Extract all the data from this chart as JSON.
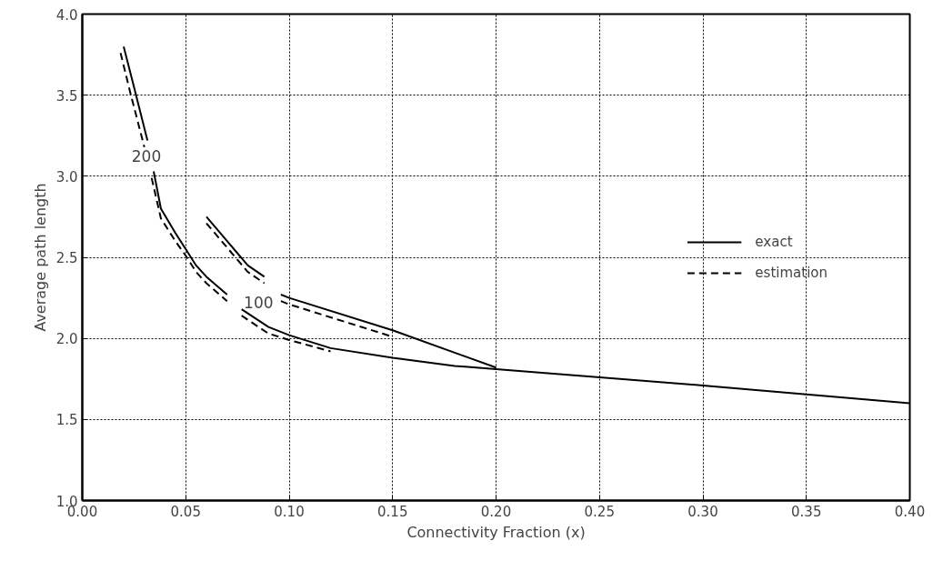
{
  "chart_data": {
    "type": "line",
    "xlabel": "Connectivity Fraction (x)",
    "ylabel": "Average path length",
    "xlim": [
      0,
      0.4
    ],
    "ylim": [
      1.0,
      4.0
    ],
    "xticks": [
      {
        "value": 0,
        "label": "0.00"
      },
      {
        "value": 0.05,
        "label": "0.05"
      },
      {
        "value": 0.1,
        "label": "0.10"
      },
      {
        "value": 0.15,
        "label": "0.15"
      },
      {
        "value": 0.2,
        "label": "0.20"
      },
      {
        "value": 0.25,
        "label": "0.25"
      },
      {
        "value": 0.3,
        "label": "0.30"
      },
      {
        "value": 0.35,
        "label": "0.35"
      },
      {
        "value": 0.4,
        "label": "0.40"
      }
    ],
    "yticks": [
      {
        "value": 1,
        "label": "1.0"
      },
      {
        "value": 1.5,
        "label": "1.5"
      },
      {
        "value": 2,
        "label": "2.0"
      },
      {
        "value": 2.5,
        "label": "2.5"
      },
      {
        "value": 3,
        "label": "3.0"
      },
      {
        "value": 3.5,
        "label": "3.5"
      },
      {
        "value": 4,
        "label": "4.0"
      }
    ],
    "grid": true,
    "legend": "right",
    "marker": "none",
    "series": [
      {
        "name": "exact",
        "color": "#000000",
        "line_style": "solid",
        "x": [
          0.02,
          0.025,
          0.0315,
          0.033,
          0.0345,
          0.038,
          0.045,
          0.05,
          0.055,
          0.06,
          0.07,
          0.074,
          0.077,
          0.09,
          0.1,
          0.12,
          0.15,
          0.18,
          0.2,
          0.3,
          0.4
        ],
        "values": [
          3.8,
          3.55,
          3.22,
          null,
          3.03,
          2.8,
          2.65,
          2.55,
          2.45,
          2.38,
          2.27,
          null,
          2.18,
          2.07,
          2.02,
          1.94,
          1.88,
          1.83,
          1.81,
          1.71,
          1.6
        ]
      },
      {
        "name": "estimation",
        "color": "#000000",
        "line_style": "dashed",
        "x": [
          0.0185,
          0.0235,
          0.03,
          0.033,
          0.0335,
          0.038,
          0.045,
          0.05,
          0.055,
          0.06,
          0.07,
          0.074,
          0.077,
          0.09,
          0.1,
          0.12
        ],
        "values": [
          3.76,
          3.5,
          3.18,
          null,
          2.99,
          2.74,
          2.6,
          2.51,
          2.41,
          2.34,
          2.23,
          null,
          2.14,
          2.03,
          1.99,
          1.92
        ]
      },
      {
        "color": "#000000",
        "line_style": "solid",
        "x": [
          0.06,
          0.07,
          0.08,
          0.088,
          0.092,
          0.096,
          0.1,
          0.15,
          0.2
        ],
        "values": [
          2.75,
          2.6,
          2.45,
          2.38,
          null,
          2.27,
          2.25,
          2.05,
          1.82
        ]
      },
      {
        "color": "#000000",
        "line_style": "dashed",
        "x": [
          0.06,
          0.07,
          0.08,
          0.088,
          0.092,
          0.096,
          0.1,
          0.15
        ],
        "values": [
          2.71,
          2.56,
          2.41,
          2.34,
          null,
          2.23,
          2.21,
          2.01
        ]
      }
    ],
    "annotations": [
      "200",
      "100"
    ]
  }
}
